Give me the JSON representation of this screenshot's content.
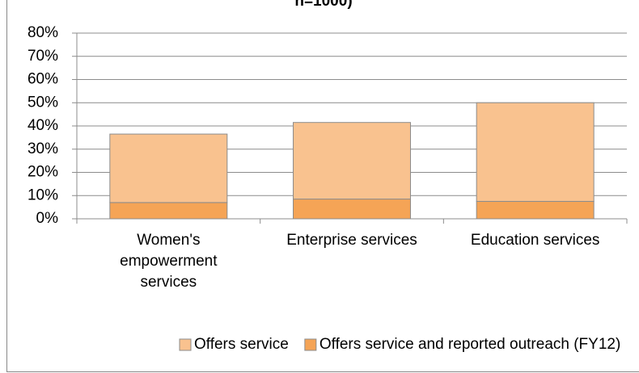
{
  "chart_data": {
    "type": "stacked_bar",
    "title": "n=1000)",
    "categories": [
      "Women's empowerment services",
      "Enterprise services",
      "Education services"
    ],
    "series": [
      {
        "name": "Offers service",
        "color": "#f9c28f",
        "values": [
          29.5,
          33,
          42.5
        ]
      },
      {
        "name": "Offers service and reported outreach (FY12)",
        "color": "#f5a456",
        "values": [
          7,
          8.5,
          7.5
        ]
      }
    ],
    "ylim": [
      0,
      80
    ],
    "yticks": [
      {
        "value": 0,
        "label": "0%"
      },
      {
        "value": 10,
        "label": "10%"
      },
      {
        "value": 20,
        "label": "20%"
      },
      {
        "value": 30,
        "label": "30%"
      },
      {
        "value": 40,
        "label": "40%"
      },
      {
        "value": 50,
        "label": "50%"
      },
      {
        "value": 60,
        "label": "60%"
      },
      {
        "value": 70,
        "label": "70%"
      },
      {
        "value": 80,
        "label": "80%"
      }
    ],
    "grid": true,
    "legend": "bottom"
  }
}
